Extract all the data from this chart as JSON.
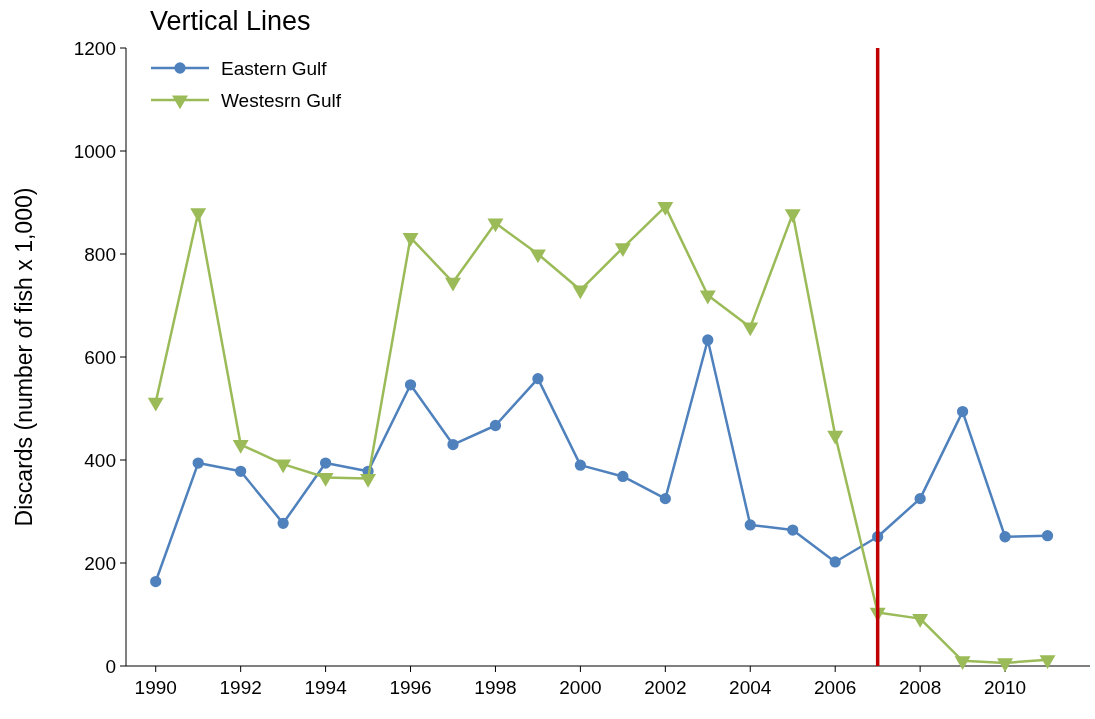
{
  "chart_data": {
    "type": "line",
    "title": "Vertical Lines",
    "ylabel": "Discards (number of fish x 1,000)",
    "x": [
      1990,
      1991,
      1992,
      1993,
      1994,
      1995,
      1996,
      1997,
      1998,
      1999,
      2000,
      2001,
      2002,
      2003,
      2004,
      2005,
      2006,
      2007,
      2008,
      2009,
      2010,
      2011
    ],
    "series": [
      {
        "name": "Eastern Gulf",
        "color": "#4f81bd",
        "marker": "circle",
        "values": [
          164,
          394,
          378,
          277,
          394,
          378,
          546,
          430,
          467,
          558,
          390,
          368,
          325,
          633,
          274,
          264,
          202,
          251,
          325,
          494,
          251,
          253
        ]
      },
      {
        "name": "Westesrn Gulf",
        "color": "#9bbb59",
        "marker": "triangle",
        "values": [
          512,
          880,
          430,
          392,
          366,
          364,
          832,
          745,
          860,
          800,
          730,
          812,
          892,
          720,
          658,
          878,
          448,
          104,
          92,
          10,
          6,
          12
        ]
      }
    ],
    "xlim": [
      1989.3,
      2012
    ],
    "xticks": [
      1990,
      1992,
      1994,
      1996,
      1998,
      2000,
      2002,
      2004,
      2006,
      2008,
      2010
    ],
    "ylim": [
      0,
      1200
    ],
    "yticks": [
      0,
      200,
      400,
      600,
      800,
      1000,
      1200
    ],
    "ref_lines": [
      {
        "axis": "x",
        "value": 2007,
        "color": "#c00000"
      }
    ],
    "grid": false,
    "legend": "top left"
  }
}
